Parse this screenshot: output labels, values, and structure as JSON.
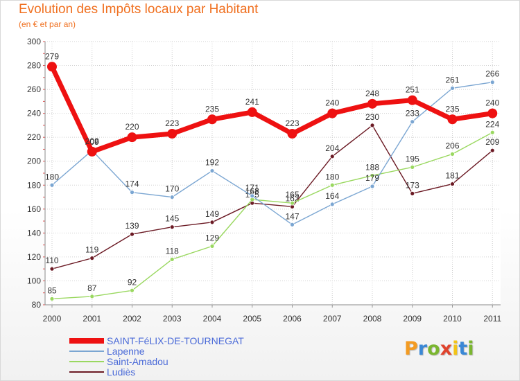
{
  "title": "Evolution des Impôts locaux par Habitant",
  "subtitle": "(en € et par an)",
  "logo": {
    "letters": [
      "P",
      "r",
      "o",
      "x",
      "i",
      "t",
      "i"
    ],
    "colors": [
      "#f39b22",
      "#3a88d6",
      "#7ab62f",
      "#e0432d",
      "#f3c417",
      "#3a88d6",
      "#7ab62f"
    ]
  },
  "chart_data": {
    "type": "line",
    "title": "Evolution des Impôts locaux par Habitant",
    "subtitle": "(en € et par an)",
    "xlabel": "",
    "ylabel": "",
    "x": [
      "2000",
      "2001",
      "2002",
      "2003",
      "2004",
      "2005",
      "2006",
      "2007",
      "2008",
      "2009",
      "2010",
      "2011"
    ],
    "ylim": [
      80,
      300
    ],
    "yticks": [
      80,
      100,
      120,
      140,
      160,
      180,
      200,
      220,
      240,
      260,
      280,
      300
    ],
    "grid": true,
    "legend_position": "bottom-left",
    "series": [
      {
        "name": "Ludiès",
        "color": "#6b1a24",
        "emphasis": false,
        "values": [
          110,
          119,
          139,
          145,
          149,
          165,
          162,
          204,
          230,
          173,
          181,
          209
        ]
      },
      {
        "name": "Saint-Amadou",
        "color": "#9ad860",
        "emphasis": false,
        "values": [
          85,
          87,
          92,
          118,
          129,
          168,
          165,
          180,
          188,
          195,
          206,
          224
        ]
      },
      {
        "name": "Lapenne",
        "color": "#7ba6d2",
        "emphasis": false,
        "values": [
          180,
          209,
          174,
          170,
          192,
          171,
          147,
          164,
          179,
          233,
          261,
          266
        ]
      },
      {
        "name": "SAINT-FéLIX-DE-TOURNEGAT",
        "color": "#ee1111",
        "emphasis": true,
        "values": [
          279,
          208,
          220,
          223,
          235,
          241,
          223,
          240,
          248,
          251,
          235,
          240
        ]
      }
    ]
  }
}
